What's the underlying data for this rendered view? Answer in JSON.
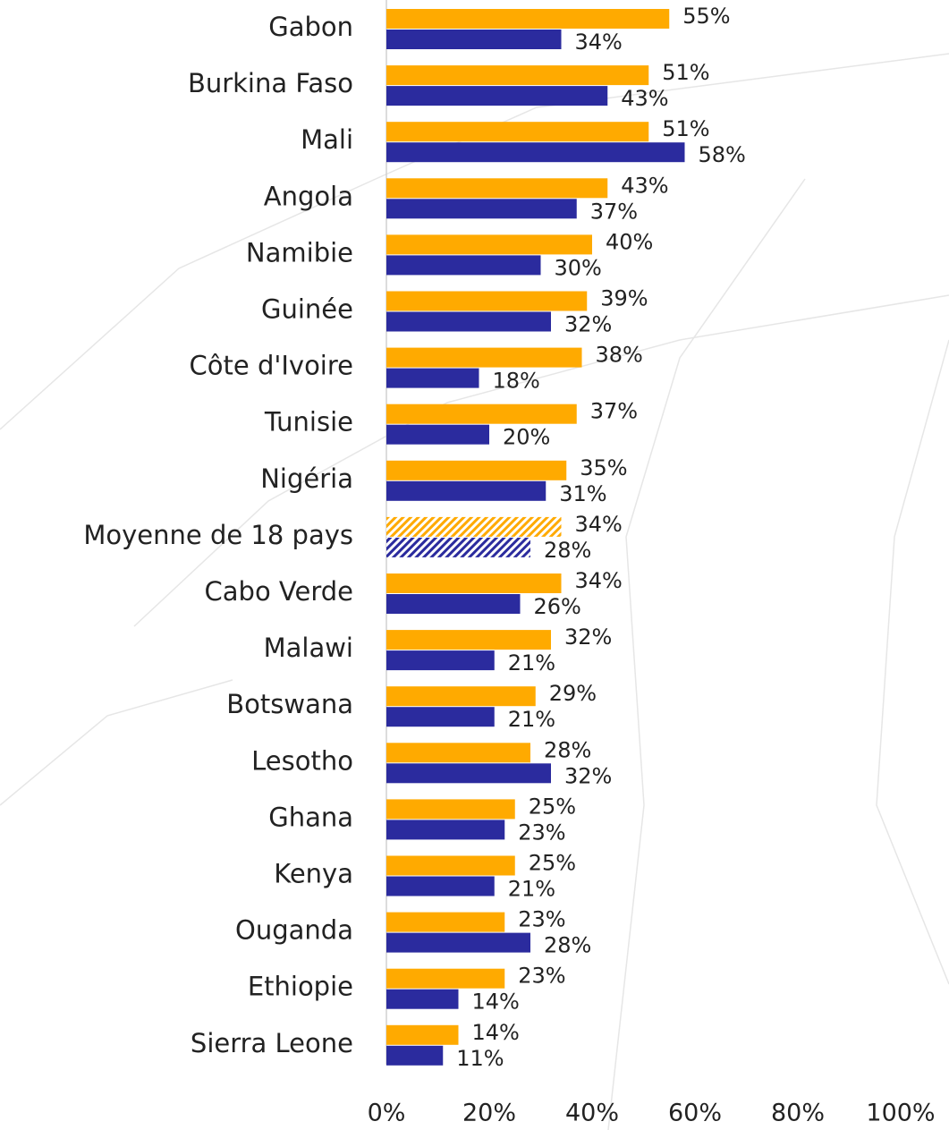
{
  "chart_data": {
    "type": "bar",
    "orientation": "horizontal",
    "categories": [
      "Gabon",
      "Burkina Faso",
      "Mali",
      "Angola",
      "Namibie",
      "Guinée",
      "Côte d'Ivoire",
      "Tunisie",
      "Nigéria",
      "Moyenne de 18 pays",
      "Cabo Verde",
      "Malawi",
      "Botswana",
      "Lesotho",
      "Ghana",
      "Kenya",
      "Ouganda",
      "Ethiopie",
      "Sierra Leone"
    ],
    "series": [
      {
        "color": "#ffaa00",
        "values": [
          55,
          51,
          51,
          43,
          40,
          39,
          38,
          37,
          35,
          34,
          34,
          32,
          29,
          28,
          25,
          25,
          23,
          23,
          14
        ],
        "value_labels": [
          "55%",
          "51%",
          "51%",
          "43%",
          "40%",
          "39%",
          "38%",
          "37%",
          "35%",
          "34%",
          "34%",
          "32%",
          "29%",
          "28%",
          "25%",
          "25%",
          "23%",
          "23%",
          "14%"
        ]
      },
      {
        "color": "#2b2b9e",
        "values": [
          34,
          43,
          58,
          37,
          30,
          32,
          18,
          20,
          31,
          28,
          26,
          21,
          21,
          32,
          23,
          21,
          28,
          14,
          11
        ],
        "value_labels": [
          "34%",
          "43%",
          "58%",
          "37%",
          "30%",
          "32%",
          "18%",
          "20%",
          "31%",
          "28%",
          "26%",
          "21%",
          "21%",
          "32%",
          "23%",
          "21%",
          "28%",
          "14%",
          "11%"
        ]
      }
    ],
    "hatched_index": 9,
    "xlim": [
      0,
      100
    ],
    "xticks": [
      {
        "value": 0,
        "label": "0%"
      },
      {
        "value": 20,
        "label": "20%"
      },
      {
        "value": 40,
        "label": "40%"
      },
      {
        "value": 60,
        "label": "60%"
      },
      {
        "value": 80,
        "label": "80%"
      },
      {
        "value": 100,
        "label": "100%"
      }
    ]
  }
}
